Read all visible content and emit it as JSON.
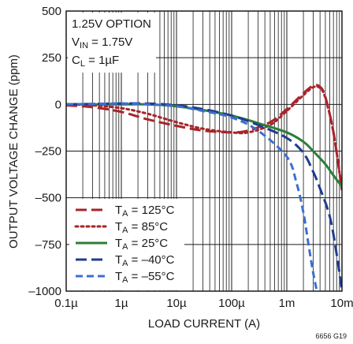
{
  "chart_data": {
    "type": "line",
    "x_scale": "log",
    "xlabel": "LOAD CURRENT (A)",
    "ylabel": "OUTPUT VOLTAGE CHANGE (ppm)",
    "xlim": [
      1e-07,
      0.01
    ],
    "ylim": [
      -1000,
      500
    ],
    "x_ticks": [
      {
        "value": 1e-07,
        "label": "0.1µ"
      },
      {
        "value": 1e-06,
        "label": "1µ"
      },
      {
        "value": 1e-05,
        "label": "10µ"
      },
      {
        "value": 0.0001,
        "label": "100µ"
      },
      {
        "value": 0.001,
        "label": "1m"
      },
      {
        "value": 0.01,
        "label": "10m"
      }
    ],
    "y_ticks": [
      {
        "value": 500,
        "label": "500"
      },
      {
        "value": 250,
        "label": "250"
      },
      {
        "value": 0,
        "label": "0"
      },
      {
        "value": -250,
        "label": "–250"
      },
      {
        "value": -500,
        "label": "–500"
      },
      {
        "value": -750,
        "label": "–750"
      },
      {
        "value": -1000,
        "label": "–1000"
      }
    ],
    "grid": true,
    "conditions": [
      "1.25V OPTION",
      "VIN = 1.75V",
      "CL = 1µF"
    ],
    "legend_position": "bottom-left",
    "series": [
      {
        "name": "TA = 125°C",
        "color": "#a8242a",
        "dash": "long-dash",
        "x": [
          1e-07,
          3e-07,
          1e-06,
          3e-06,
          1e-05,
          3e-05,
          0.0001,
          0.0002,
          0.0005,
          0.001,
          0.002,
          0.003,
          0.004,
          0.005,
          0.007,
          0.01
        ],
        "y": [
          -5,
          -15,
          -40,
          -80,
          -115,
          -140,
          -150,
          -140,
          -95,
          -25,
          60,
          100,
          95,
          40,
          -150,
          -455
        ]
      },
      {
        "name": "TA = 85°C",
        "color": "#a8242a",
        "dash": "dotted",
        "x": [
          1e-07,
          3e-07,
          1e-06,
          3e-06,
          1e-05,
          3e-05,
          0.0001,
          0.0002,
          0.0005,
          0.001,
          0.002,
          0.003,
          0.004,
          0.005,
          0.007,
          0.01
        ],
        "y": [
          0,
          -5,
          -20,
          -50,
          -95,
          -130,
          -150,
          -150,
          -110,
          -35,
          50,
          92,
          88,
          35,
          -150,
          -460
        ]
      },
      {
        "name": "TA = 25°C",
        "color": "#2d7d3a",
        "dash": "solid",
        "x": [
          1e-07,
          1e-06,
          3e-06,
          1e-05,
          3e-05,
          0.0001,
          0.0003,
          0.001,
          0.002,
          0.003,
          0.005,
          0.007,
          0.01
        ],
        "y": [
          0,
          0,
          0,
          -10,
          -30,
          -60,
          -100,
          -150,
          -200,
          -250,
          -320,
          -380,
          -440
        ]
      },
      {
        "name": "TA = –40°C",
        "color": "#1f3d8f",
        "dash": "long-dash",
        "x": [
          1e-07,
          1e-06,
          3e-06,
          1e-05,
          3e-05,
          0.0001,
          0.0003,
          0.001,
          0.002,
          0.003,
          0.004,
          0.006,
          0.008,
          0.01
        ],
        "y": [
          0,
          5,
          5,
          -5,
          -25,
          -60,
          -110,
          -180,
          -260,
          -360,
          -450,
          -600,
          -800,
          -1000
        ]
      },
      {
        "name": "TA = –55°C",
        "color": "#3b6fd0",
        "dash": "dashed",
        "x": [
          1e-07,
          1e-06,
          3e-06,
          1e-05,
          3e-05,
          0.0001,
          0.0003,
          0.001,
          0.0015,
          0.002,
          0.0025,
          0.003,
          0.0035
        ],
        "y": [
          0,
          5,
          0,
          -10,
          -35,
          -70,
          -140,
          -280,
          -420,
          -580,
          -760,
          -900,
          -1000
        ]
      }
    ]
  },
  "figure_id": "6656 G19"
}
